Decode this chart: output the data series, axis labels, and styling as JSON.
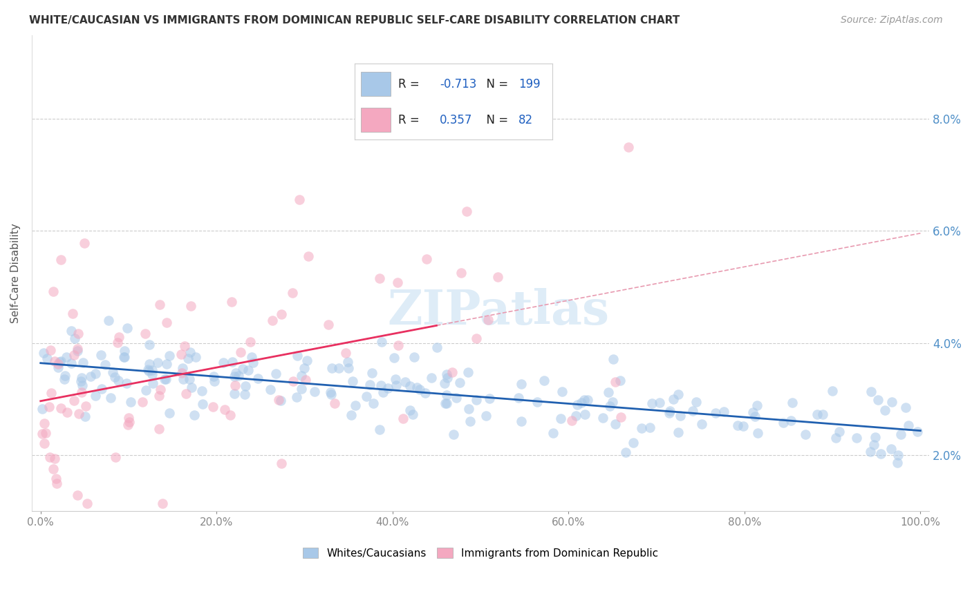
{
  "title": "WHITE/CAUCASIAN VS IMMIGRANTS FROM DOMINICAN REPUBLIC SELF-CARE DISABILITY CORRELATION CHART",
  "source": "Source: ZipAtlas.com",
  "ylabel": "Self-Care Disability",
  "legend_blue_r": "-0.713",
  "legend_blue_n": "199",
  "legend_pink_r": "0.357",
  "legend_pink_n": "82",
  "blue_color": "#A8C8E8",
  "pink_color": "#F4A8C0",
  "blue_line_color": "#2060B0",
  "pink_line_color": "#E83060",
  "dashed_line_color": "#E89AB0",
  "ytick_color": "#5090C8",
  "xtick_color": "#888888",
  "grid_color": "#CCCCCC",
  "title_color": "#333333",
  "source_color": "#999999",
  "background_color": "#FFFFFF",
  "yticks": [
    2.0,
    4.0,
    6.0,
    8.0
  ],
  "xticks": [
    0,
    20,
    40,
    60,
    80,
    100
  ],
  "ylim": [
    1.0,
    9.5
  ],
  "xlim": [
    -1,
    101
  ]
}
